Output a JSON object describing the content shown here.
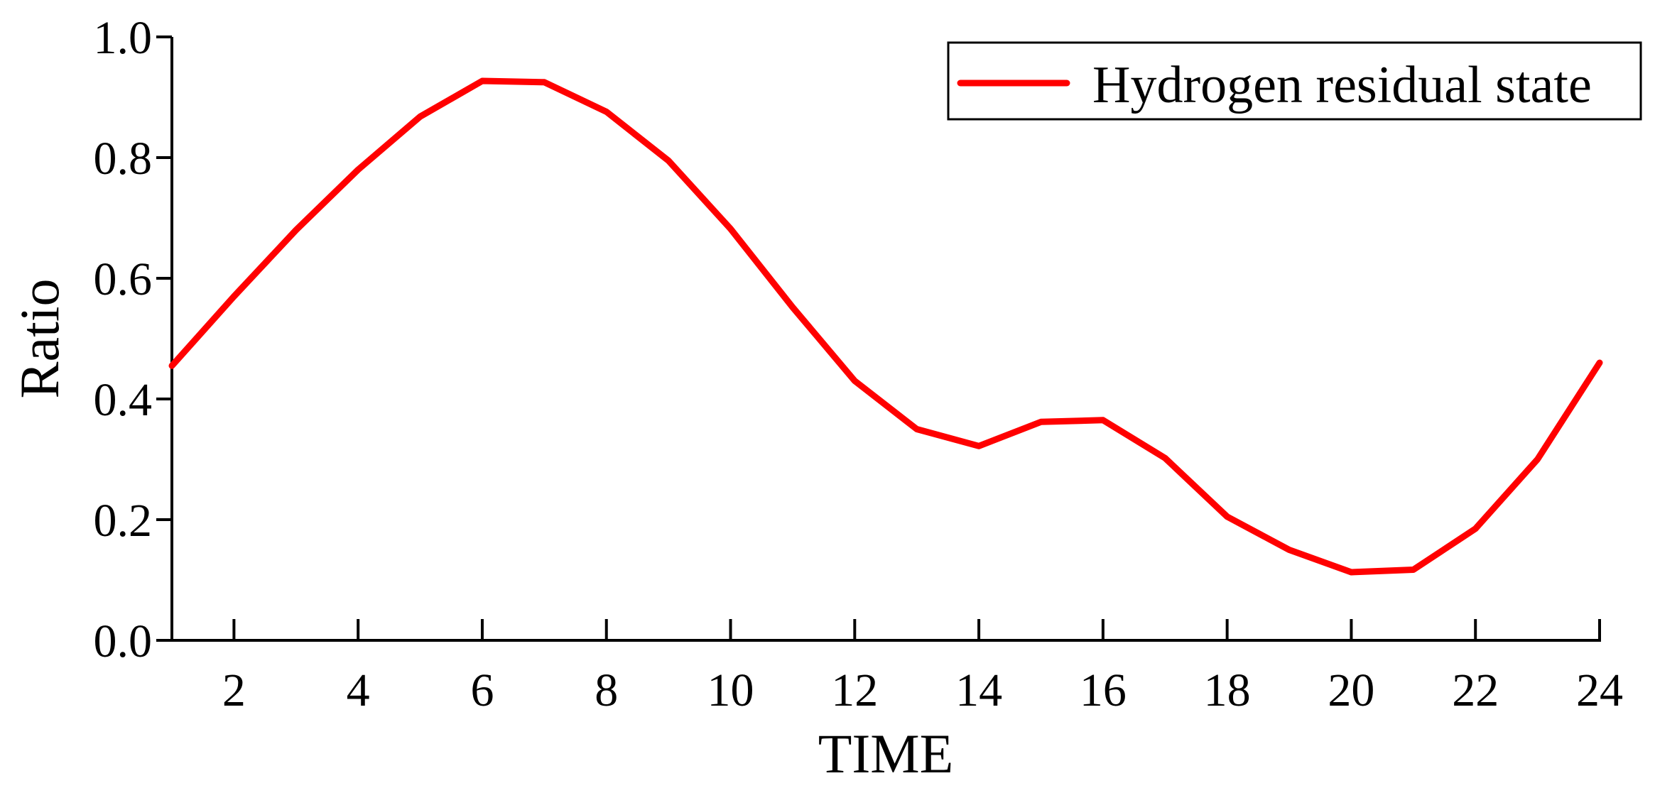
{
  "chart_data": {
    "type": "line",
    "title": "",
    "xlabel": "TIME",
    "ylabel": "Ratio",
    "xlim": [
      1,
      24
    ],
    "ylim": [
      0,
      1.0
    ],
    "x_ticks": [
      "2",
      "4",
      "6",
      "8",
      "10",
      "12",
      "14",
      "16",
      "18",
      "20",
      "22",
      "24"
    ],
    "y_ticks": [
      "0.0",
      "0.2",
      "0.4",
      "0.6",
      "0.8",
      "1.0"
    ],
    "grid": false,
    "legend_position": "top-right",
    "series": [
      {
        "name": "Hydrogen residual state",
        "color": "#ff0000",
        "x": [
          1,
          2,
          3,
          4,
          5,
          6,
          7,
          8,
          9,
          10,
          11,
          12,
          13,
          14,
          15,
          16,
          17,
          18,
          19,
          20,
          21,
          22,
          23,
          24
        ],
        "values": [
          0.455,
          0.57,
          0.68,
          0.78,
          0.868,
          0.927,
          0.925,
          0.876,
          0.795,
          0.682,
          0.552,
          0.43,
          0.35,
          0.322,
          0.362,
          0.365,
          0.302,
          0.205,
          0.15,
          0.113,
          0.117,
          0.185,
          0.3,
          0.46
        ]
      }
    ]
  }
}
